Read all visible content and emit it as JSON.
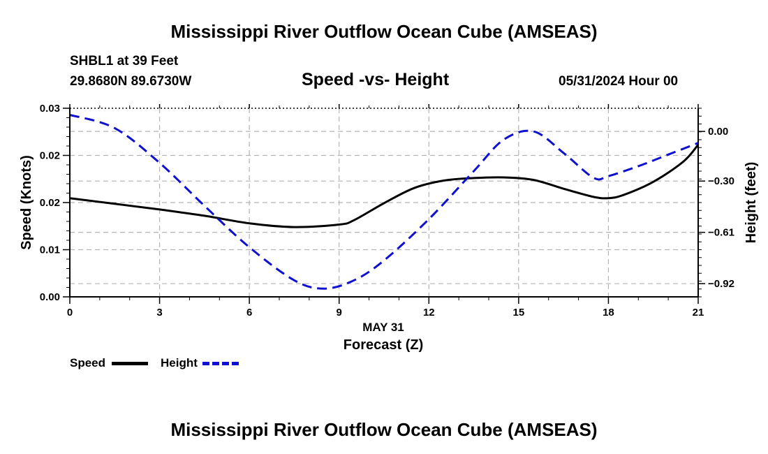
{
  "header": {
    "title": "Mississippi River Outflow Ocean Cube (AMSEAS)",
    "station": "SHBL1 at 39 Feet",
    "coords": "29.8680N  89.6730W",
    "subtitle": "Speed -vs- Height",
    "datetime": "05/31/2024 Hour 00"
  },
  "footer": {
    "title": "Mississippi River Outflow Ocean Cube (AMSEAS)"
  },
  "legend": {
    "speed_label": "Speed",
    "height_label": "Height",
    "speed_color": "#000000",
    "height_color": "#1010d0"
  },
  "chart_data": {
    "type": "line",
    "title": "Speed -vs- Height",
    "xlabel": "Forecast (Z)",
    "xlabel_date": "MAY 31",
    "ylabel": "Speed (Knots)",
    "y2label": "Height (feet)",
    "xlim": [
      0,
      21
    ],
    "ylim": [
      0,
      0.03
    ],
    "y2lim": [
      -1.0,
      0.14
    ],
    "x_ticks": [
      0,
      3,
      6,
      9,
      12,
      15,
      18,
      21
    ],
    "x_tick_labels": [
      "0",
      "3",
      "6",
      "9",
      "12",
      "15",
      "18",
      "21"
    ],
    "y_ticks": [
      0,
      0.0075,
      0.015,
      0.0225,
      0.03
    ],
    "y_tick_labels": [
      "0.00",
      "0.01",
      "0.02",
      "0.02",
      "0.03"
    ],
    "y2_ticks": [
      0.0,
      -0.3,
      -0.61,
      -0.92
    ],
    "y2_tick_labels": [
      "0.00",
      "-0.30",
      "-0.61",
      "-0.92"
    ],
    "grid": true,
    "series": [
      {
        "name": "Speed",
        "axis": "left",
        "color": "#000000",
        "style": "solid",
        "x": [
          0,
          1.5,
          3,
          4.5,
          6,
          7.5,
          9,
          9.5,
          10.5,
          11.5,
          12.5,
          13.5,
          14.5,
          15.5,
          16.5,
          17.5,
          18,
          18.5,
          19.5,
          20.5,
          21
        ],
        "values": [
          0.0157,
          0.0148,
          0.0139,
          0.0129,
          0.0117,
          0.0111,
          0.0115,
          0.0122,
          0.0149,
          0.0173,
          0.0185,
          0.0189,
          0.019,
          0.0186,
          0.0172,
          0.0159,
          0.0157,
          0.0162,
          0.0183,
          0.0215,
          0.0242
        ]
      },
      {
        "name": "Height",
        "axis": "right",
        "color": "#1010d0",
        "style": "dashed",
        "x": [
          0,
          1.5,
          3,
          4.5,
          6,
          7.5,
          8.5,
          9.5,
          10.5,
          12,
          13.5,
          14.5,
          15.5,
          16.5,
          17.5,
          18,
          19,
          20,
          21
        ],
        "values": [
          0.1,
          0.02,
          -0.19,
          -0.45,
          -0.7,
          -0.9,
          -0.95,
          -0.9,
          -0.78,
          -0.53,
          -0.24,
          -0.05,
          0.0,
          -0.13,
          -0.28,
          -0.27,
          -0.21,
          -0.14,
          -0.07
        ]
      }
    ]
  }
}
